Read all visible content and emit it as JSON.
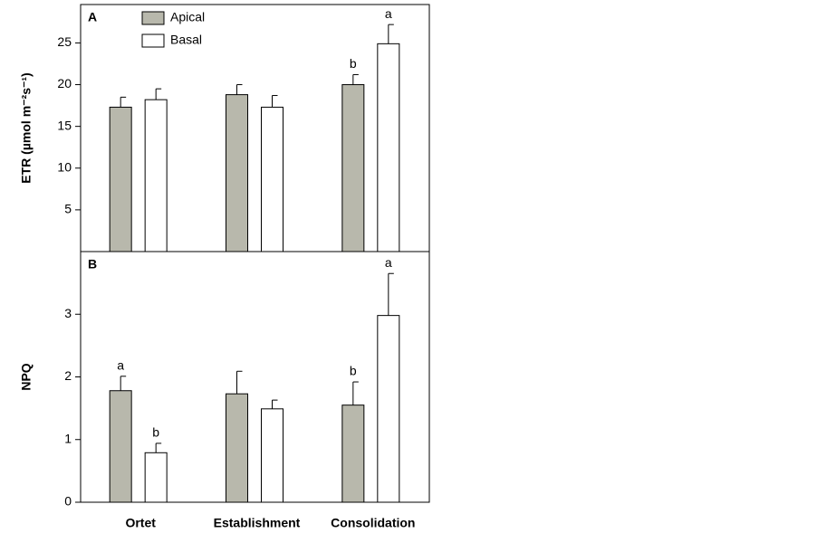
{
  "chart_data": [
    {
      "type": "bar",
      "panel_label": "A",
      "ylabel": "ETR (µmol m⁻²s⁻¹)",
      "ylim": [
        0,
        29.6
      ],
      "yticks": [
        5,
        10,
        15,
        20,
        25
      ],
      "legend": true,
      "series": [
        {
          "name": "Apical",
          "color": "#b8b8ac",
          "values": [
            17.3,
            18.8,
            20.0
          ],
          "errors": [
            1.2,
            1.2,
            1.2
          ],
          "letters": [
            null,
            null,
            "b"
          ]
        },
        {
          "name": "Basal",
          "color": "#ffffff",
          "values": [
            18.2,
            17.3,
            24.9
          ],
          "errors": [
            1.3,
            1.4,
            2.3
          ],
          "letters": [
            null,
            null,
            "a"
          ]
        }
      ]
    },
    {
      "type": "bar",
      "panel_label": "B",
      "ylabel": "NPQ",
      "categories": [
        "Ortet",
        "Establishment",
        "Consolidation"
      ],
      "ylim": [
        0,
        4
      ],
      "yticks": [
        0,
        1,
        2,
        3
      ],
      "legend": false,
      "series": [
        {
          "color": "#b8b8ac",
          "values": [
            1.78,
            1.73,
            1.55
          ],
          "errors": [
            0.23,
            0.36,
            0.37
          ],
          "letters": [
            "a",
            null,
            "b"
          ]
        },
        {
          "color": "#ffffff",
          "values": [
            0.79,
            1.49,
            2.98
          ],
          "errors": [
            0.15,
            0.14,
            0.67
          ],
          "letters": [
            "b",
            null,
            "a"
          ]
        }
      ]
    }
  ]
}
